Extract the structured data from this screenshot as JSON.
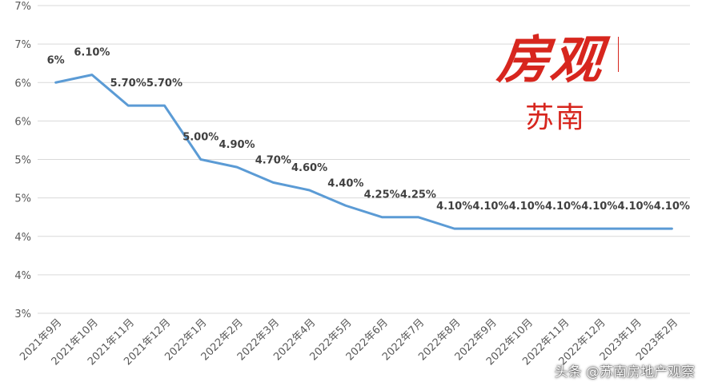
{
  "chart_data": {
    "type": "line",
    "categories": [
      "2021年9月",
      "2021年10月",
      "2021年11月",
      "2021年12月",
      "2022年1月",
      "2022年2月",
      "2022年3月",
      "2022年4月",
      "2022年5月",
      "2022年6月",
      "2022年7月",
      "2022年8月",
      "2022年9月",
      "2022年10月",
      "2022年11月",
      "2022年12月",
      "2023年1月",
      "2023年2月"
    ],
    "series": [
      {
        "values": [
          6.0,
          6.1,
          5.7,
          5.7,
          5.0,
          4.9,
          4.7,
          4.6,
          4.4,
          4.25,
          4.25,
          4.1,
          4.1,
          4.1,
          4.1,
          4.1,
          4.1,
          4.1
        ],
        "labels": [
          "6%",
          "6.10%",
          "5.70%",
          "5.70%",
          "5.00%",
          "4.90%",
          "4.70%",
          "4.60%",
          "4.40%",
          "4.25%",
          "4.25%",
          "4.10%",
          "4.10%",
          "4.10%",
          "4.10%",
          "4.10%",
          "4.10%",
          "4.10%"
        ],
        "color": "#5b9bd5"
      }
    ],
    "ylim": [
      3.0,
      7.0
    ],
    "yticks": [
      3.0,
      3.5,
      4.0,
      4.5,
      5.0,
      5.5,
      6.0,
      6.5,
      7.0
    ],
    "ytick_labels": [
      "3%",
      "4%",
      "4%",
      "5%",
      "5%",
      "6%",
      "6%",
      "7%",
      "7%"
    ],
    "grid": true,
    "xlabel": "",
    "ylabel": "",
    "title": ""
  },
  "logo": {
    "main": "房观",
    "sub": "苏南"
  },
  "watermark": "头条 @苏南房地产观察"
}
